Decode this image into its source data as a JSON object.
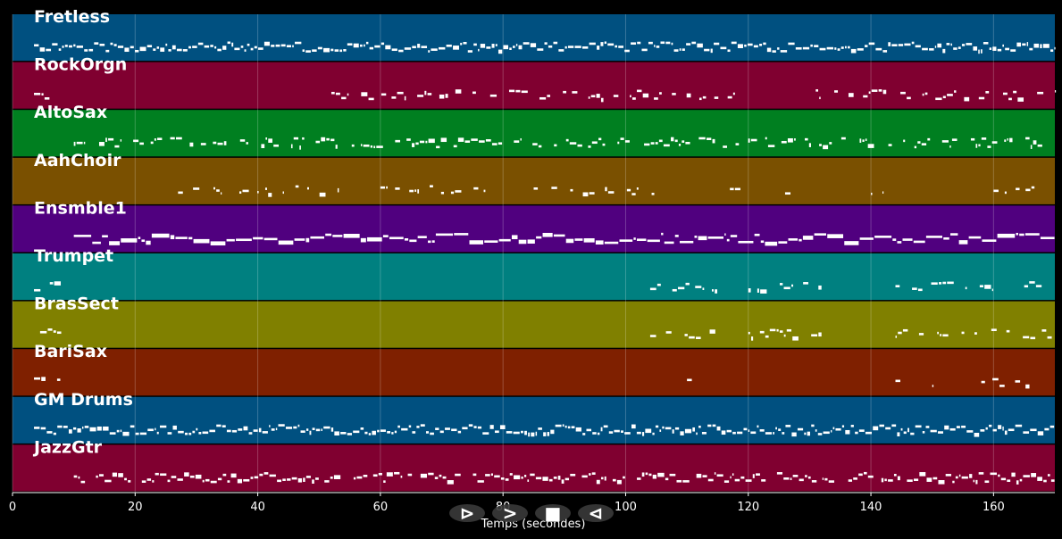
{
  "chart_data": {
    "type": "piano-roll",
    "xlabel": "Temps (secondes)",
    "xlim": [
      0,
      170
    ],
    "x_ticks": [
      "0",
      "20",
      "40",
      "60",
      "80",
      "100",
      "120",
      "140",
      "160"
    ],
    "grid": true,
    "tracks": [
      {
        "name": "Fretless",
        "color": "#005080",
        "regions": [
          [
            3.5,
            170
          ]
        ],
        "density": 1.0
      },
      {
        "name": "RockOrgn",
        "color": "#800030",
        "regions": [
          [
            3.5,
            8
          ],
          [
            52,
            118
          ],
          [
            131,
            170
          ]
        ],
        "density": 0.55
      },
      {
        "name": "AltoSax",
        "color": "#007f20",
        "regions": [
          [
            10,
            168
          ]
        ],
        "density": 0.75
      },
      {
        "name": "AahChoir",
        "color": "#7a5000",
        "regions": [
          [
            27,
            34
          ],
          [
            37,
            55
          ],
          [
            60,
            78
          ],
          [
            85,
            105
          ],
          [
            117,
            119
          ],
          [
            126,
            127
          ],
          [
            140,
            142
          ],
          [
            160,
            167
          ]
        ],
        "density": 0.45
      },
      {
        "name": "Ensmble1",
        "color": "#50007f",
        "regions": [
          [
            10,
            170
          ]
        ],
        "density": 1.0
      },
      {
        "name": "Trumpet",
        "color": "#008080",
        "regions": [
          [
            3.5,
            8
          ],
          [
            104,
            115
          ],
          [
            120,
            132
          ],
          [
            144,
            160
          ],
          [
            165,
            168
          ]
        ],
        "density": 0.6
      },
      {
        "name": "BrasSect",
        "color": "#808000",
        "regions": [
          [
            4.5,
            8
          ],
          [
            104,
            115
          ],
          [
            120,
            132
          ],
          [
            144,
            170
          ]
        ],
        "density": 0.7
      },
      {
        "name": "BariSax",
        "color": "#7f2000",
        "regions": [
          [
            3.5,
            8.5
          ],
          [
            110,
            111
          ],
          [
            144,
            145
          ],
          [
            150,
            151
          ],
          [
            158,
            166
          ]
        ],
        "density": 0.3
      },
      {
        "name": "GM Drums",
        "color": "#005080",
        "regions": [
          [
            3.5,
            170
          ]
        ],
        "density": 1.0
      },
      {
        "name": "JazzGtr",
        "color": "#800030",
        "regions": [
          [
            10,
            170
          ]
        ],
        "density": 0.9
      }
    ]
  },
  "controls": {
    "play_symbol": "⊳",
    "forward_symbol": ">",
    "stop_symbol": "■",
    "back_symbol": "⊲"
  },
  "colors": {
    "background": "#000000",
    "note": "#ffffff",
    "grid": "#ffffff",
    "control_bg": "#3a3a3a"
  }
}
